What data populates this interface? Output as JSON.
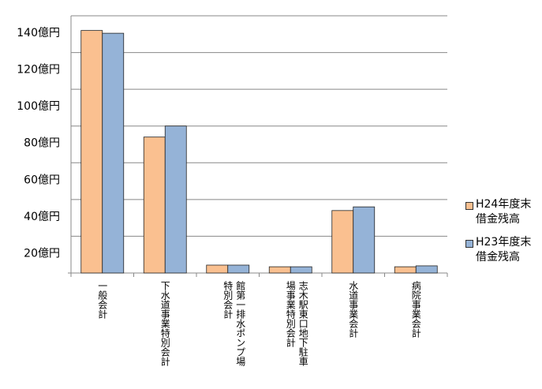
{
  "chart_data": {
    "type": "bar",
    "categories": [
      "一般会計",
      "下水道事業特別会計",
      "館第一排水ポンプ場特別会計",
      "志木駅東口地下駐車場事業特別会計",
      "水道事業会計",
      "病院事業会計"
    ],
    "series": [
      {
        "name": "H24年度末借金残高",
        "color": "#fac090",
        "values": [
          132,
          74,
          4.3,
          3.4,
          34,
          3.4
        ]
      },
      {
        "name": "H23年度末借金残高",
        "color": "#95b3d7",
        "values": [
          130.5,
          80,
          4.3,
          3.4,
          36,
          3.9
        ]
      }
    ],
    "ylim": [
      0,
      140
    ],
    "yticks": [
      {
        "value": 20,
        "label": "20億円"
      },
      {
        "value": 40,
        "label": "40億円"
      },
      {
        "value": 60,
        "label": "60億円"
      },
      {
        "value": 80,
        "label": "80億円"
      },
      {
        "value": 100,
        "label": "100億円"
      },
      {
        "value": 120,
        "label": "120億円"
      },
      {
        "value": 140,
        "label": "140億円"
      }
    ],
    "grid": true,
    "legend": "right"
  }
}
